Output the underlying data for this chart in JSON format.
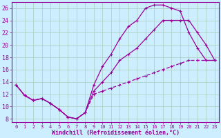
{
  "xlabel": "Windchill (Refroidissement éolien,°C)",
  "bg_color": "#cceeff",
  "line_color": "#990099",
  "grid_color": "#aaccbb",
  "xlim": [
    -0.5,
    23.5
  ],
  "ylim": [
    7.5,
    27.0
  ],
  "xticks": [
    0,
    1,
    2,
    3,
    4,
    5,
    6,
    7,
    8,
    9,
    10,
    11,
    12,
    13,
    14,
    15,
    16,
    17,
    18,
    19,
    20,
    21,
    22,
    23
  ],
  "yticks": [
    8,
    10,
    12,
    14,
    16,
    18,
    20,
    22,
    24,
    26
  ],
  "curve_upper_x": [
    0,
    1,
    2,
    3,
    4,
    5,
    6,
    7,
    8,
    9,
    10,
    11,
    12,
    13,
    14,
    15,
    16,
    17,
    18,
    19,
    20,
    21,
    22,
    23
  ],
  "curve_upper_y": [
    13.5,
    11.8,
    11.0,
    11.3,
    10.5,
    9.5,
    8.3,
    8.0,
    9.0,
    13.5,
    16.5,
    18.5,
    21.0,
    23.0,
    24.0,
    26.0,
    26.5,
    26.5,
    26.0,
    25.5,
    22.0,
    19.5,
    17.5,
    17.5
  ],
  "curve_mid_x": [
    0,
    1,
    2,
    3,
    4,
    5,
    6,
    7,
    8,
    9,
    10,
    11,
    12,
    13,
    14,
    15,
    16,
    17,
    18,
    19,
    20,
    21,
    22,
    23
  ],
  "curve_mid_y": [
    13.5,
    11.8,
    11.0,
    11.3,
    10.5,
    9.5,
    8.3,
    8.0,
    9.0,
    12.5,
    14.0,
    15.5,
    17.5,
    18.5,
    19.5,
    21.0,
    22.5,
    24.0,
    24.0,
    24.0,
    24.0,
    22.0,
    20.0,
    17.5
  ],
  "curve_low_x": [
    0,
    1,
    2,
    3,
    4,
    5,
    6,
    7,
    8,
    9,
    10,
    11,
    12,
    13,
    14,
    15,
    16,
    17,
    18,
    19,
    20,
    21,
    22,
    23
  ],
  "curve_low_y": [
    13.5,
    11.8,
    11.0,
    11.3,
    10.5,
    9.5,
    8.3,
    8.0,
    9.0,
    12.0,
    12.5,
    13.0,
    13.5,
    14.0,
    14.5,
    15.0,
    15.5,
    16.0,
    16.5,
    17.0,
    17.5,
    17.5,
    17.5,
    17.5
  ]
}
